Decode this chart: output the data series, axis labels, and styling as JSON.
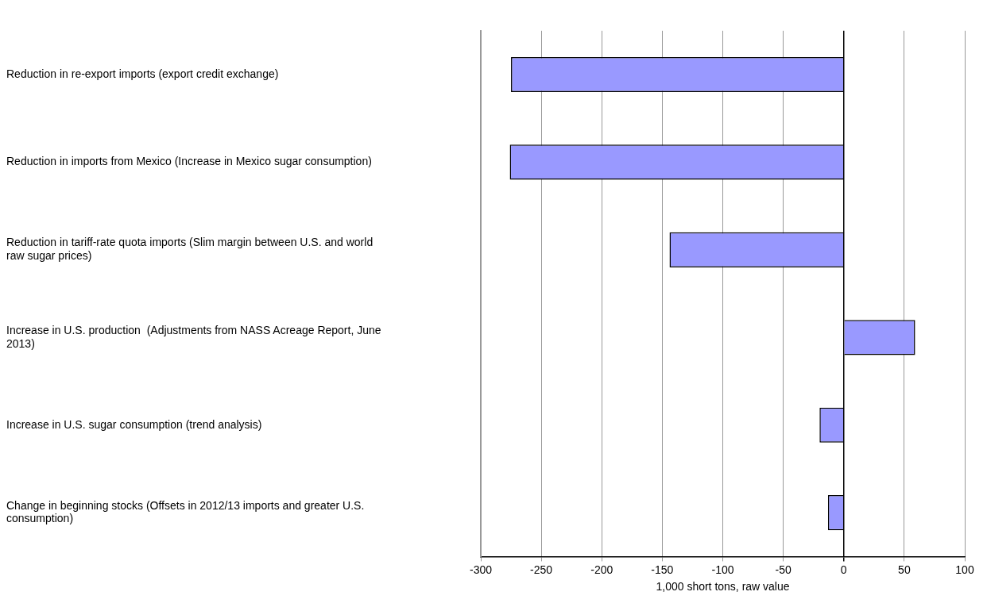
{
  "chart_data": {
    "type": "bar",
    "orientation": "horizontal",
    "xlabel": "1,000 short tons, raw value",
    "categories": [
      "Reduction in re-export imports (export credit exchange)",
      "Reduction in imports from Mexico (Increase in Mexico sugar consumption)",
      "Reduction in tariff-rate quota imports (Slim margin between U.S. and world raw sugar prices)",
      "Increase in U.S. production  (Adjustments from NASS Acreage Report, June 2013)",
      "Increase in U.S. sugar consumption (trend analysis)",
      "Change in beginning stocks (Offsets in 2012/13 imports and greater U.S. consumption)"
    ],
    "values": [
      -275,
      -276,
      -144,
      59,
      -20,
      -13
    ],
    "color": "#9999ff",
    "xlim": [
      -300,
      100
    ],
    "xticks": [
      -300,
      -250,
      -200,
      -150,
      -100,
      -50,
      0,
      50,
      100
    ],
    "grid": "x",
    "legend": false
  }
}
